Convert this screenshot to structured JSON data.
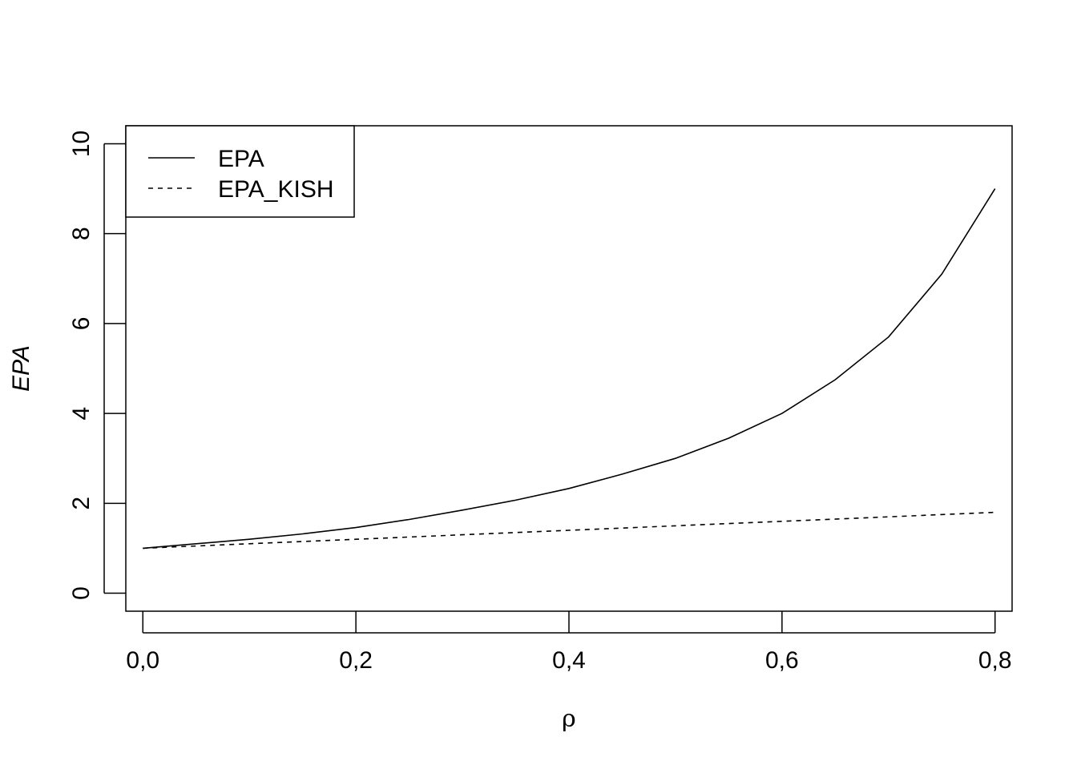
{
  "chart_data": {
    "type": "line",
    "xlabel": "ρ",
    "ylabel": "EPA",
    "xlim": [
      -0.016,
      0.816
    ],
    "ylim": [
      -0.4,
      10.4
    ],
    "x_ticks": [
      0.0,
      0.2,
      0.4,
      0.6,
      0.8
    ],
    "x_tick_labels": [
      "0,0",
      "0,2",
      "0,4",
      "0,6",
      "0,8"
    ],
    "y_ticks": [
      0,
      2,
      4,
      6,
      8,
      10
    ],
    "y_tick_labels": [
      "0",
      "2",
      "4",
      "6",
      "8",
      "10"
    ],
    "legend_position": "top-left",
    "grid": false,
    "series": [
      {
        "name": "EPA",
        "line_style": "solid",
        "x": [
          0.0,
          0.05,
          0.1,
          0.15,
          0.2,
          0.25,
          0.3,
          0.35,
          0.4,
          0.45,
          0.5,
          0.55,
          0.6,
          0.65,
          0.7,
          0.75,
          0.8
        ],
        "values": [
          1.0,
          1.1,
          1.2,
          1.32,
          1.46,
          1.64,
          1.85,
          2.07,
          2.33,
          2.65,
          3.0,
          3.45,
          4.0,
          4.75,
          5.7,
          7.1,
          9.0
        ]
      },
      {
        "name": "EPA_KISH",
        "line_style": "dashed",
        "x": [
          0.0,
          0.1,
          0.2,
          0.3,
          0.4,
          0.5,
          0.6,
          0.7,
          0.8
        ],
        "values": [
          1.0,
          1.1,
          1.2,
          1.3,
          1.4,
          1.5,
          1.6,
          1.7,
          1.8
        ]
      }
    ]
  }
}
